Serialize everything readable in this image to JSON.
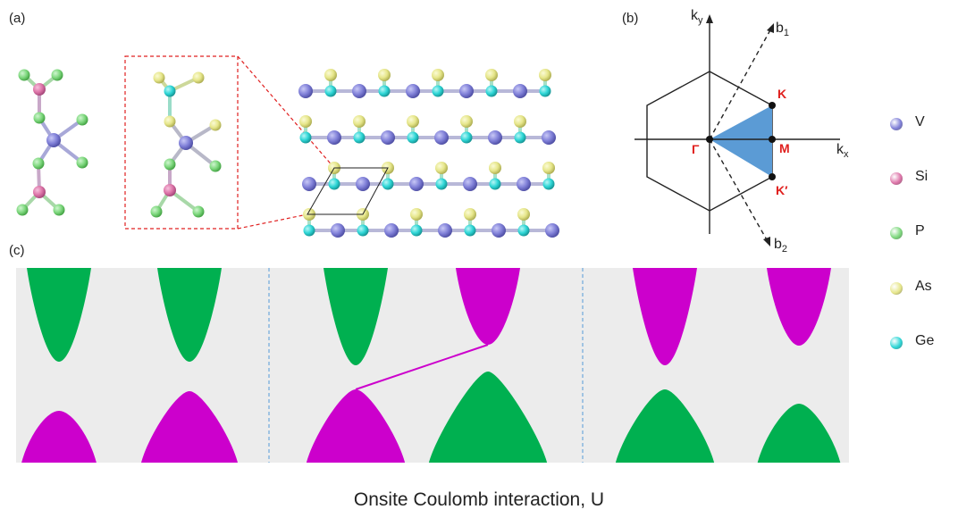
{
  "panels": {
    "a": "(a)",
    "b": "(b)",
    "c": "(c)"
  },
  "brillouin_zone": {
    "axis_kx_base": "k",
    "axis_kx_sub": "x",
    "axis_ky_base": "k",
    "axis_ky_sub": "y",
    "b1_base": "b",
    "b1_sub": "1",
    "b2_base": "b",
    "b2_sub": "2",
    "points": {
      "gamma": "Γ",
      "m": "M",
      "k": "K",
      "kprime": "K′"
    },
    "colors": {
      "wedge": "#5b9bd5",
      "point_label": "#e0201e"
    }
  },
  "legend": [
    {
      "label": "V",
      "color": "#8080d8"
    },
    {
      "label": "Si",
      "color": "#dd74a8"
    },
    {
      "label": "P",
      "color": "#7ed87e"
    },
    {
      "label": "As",
      "color": "#e6e68a"
    },
    {
      "label": "Ge",
      "color": "#2ed6d6"
    }
  ],
  "valleys": {
    "colors": {
      "green": "#00b050",
      "magenta": "#cc00cc",
      "background": "#ececec",
      "divider": "#6fa8dc"
    },
    "states": [
      {
        "conduction": [
          "green",
          "green"
        ],
        "valence": [
          "magenta",
          "magenta"
        ]
      },
      {
        "conduction": [
          "green",
          "magenta"
        ],
        "valence": [
          "magenta",
          "green"
        ]
      },
      {
        "conduction": [
          "magenta",
          "magenta"
        ],
        "valence": [
          "green",
          "green"
        ]
      }
    ]
  },
  "arrow_color": "#1515c8",
  "caption": "Onsite Coulomb interaction, U"
}
